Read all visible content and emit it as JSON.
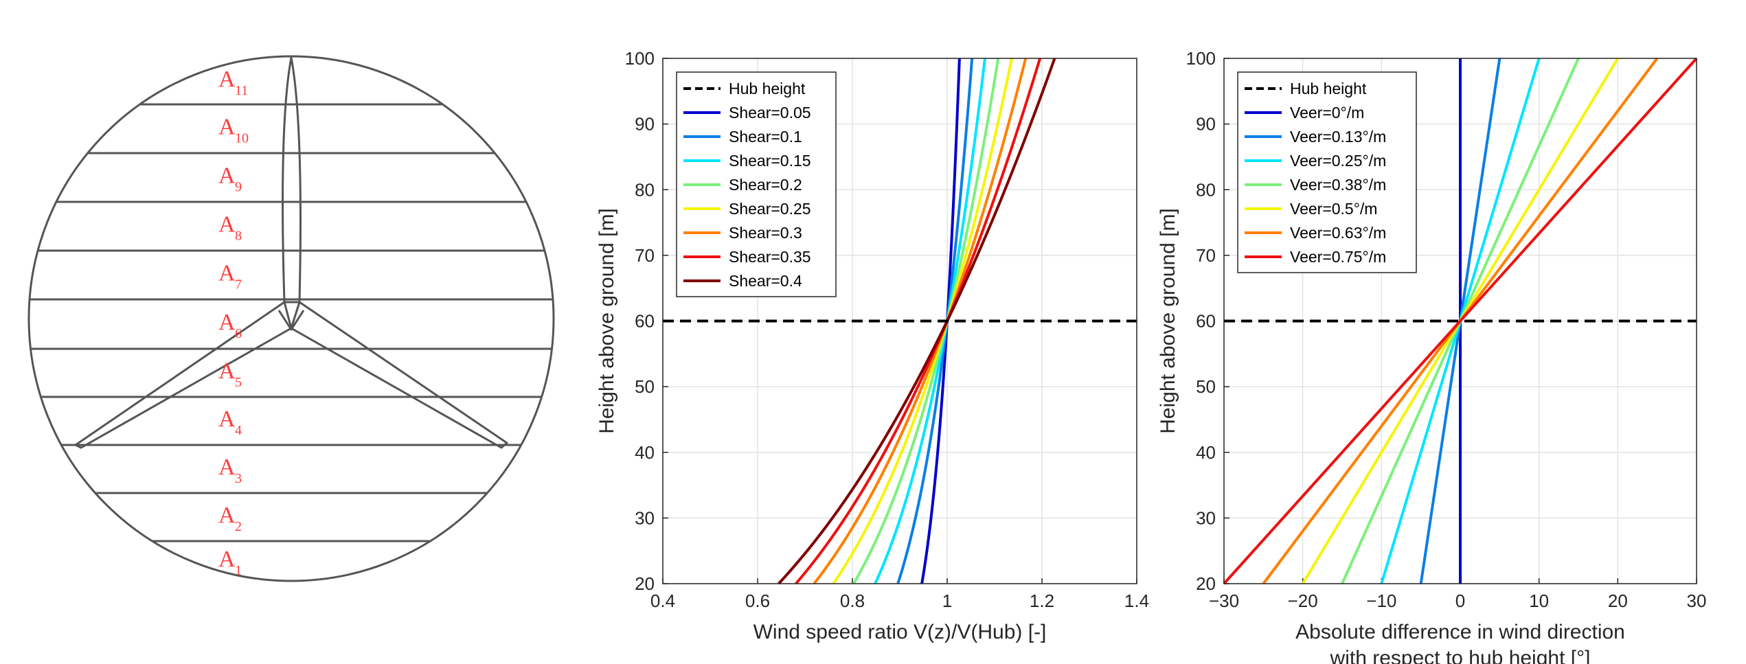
{
  "rotor_diagram": {
    "labels": [
      "A",
      "A",
      "A",
      "A",
      "A",
      "A",
      "A",
      "A",
      "A",
      "A",
      "A"
    ],
    "subscripts": [
      "11",
      "10",
      "9",
      "8",
      "7",
      "6",
      "5",
      "4",
      "3",
      "2",
      "1"
    ],
    "label_color": "#ff3b3b"
  },
  "chart_data": [
    {
      "type": "line",
      "xlabel": "Wind speed ratio V(z)/V(Hub) [-]",
      "ylabel": "Height above ground [m]",
      "xlim": [
        0.4,
        1.4
      ],
      "ylim": [
        20,
        100
      ],
      "xticks": [
        "0.4",
        "0.6",
        "0.8",
        "1",
        "1.2",
        "1.4"
      ],
      "yticks": [
        "20",
        "30",
        "40",
        "50",
        "60",
        "70",
        "80",
        "90",
        "100"
      ],
      "grid": true,
      "legend_position": "top-left",
      "hub_height": 60,
      "hub_label": "Hub height",
      "series": [
        {
          "name": "Shear=0.05",
          "exponent": 0.05,
          "color": "#0000cc"
        },
        {
          "name": "Shear=0.1",
          "exponent": 0.1,
          "color": "#0a7fe6"
        },
        {
          "name": "Shear=0.15",
          "exponent": 0.15,
          "color": "#00e5ff"
        },
        {
          "name": "Shear=0.2",
          "exponent": 0.2,
          "color": "#7cf07c"
        },
        {
          "name": "Shear=0.25",
          "exponent": 0.25,
          "color": "#f5f50a"
        },
        {
          "name": "Shear=0.3",
          "exponent": 0.3,
          "color": "#ff8000"
        },
        {
          "name": "Shear=0.35",
          "exponent": 0.35,
          "color": "#ee1111"
        },
        {
          "name": "Shear=0.4",
          "exponent": 0.4,
          "color": "#800000"
        }
      ]
    },
    {
      "type": "line",
      "xlabel": "Absolute difference in wind direction",
      "xlabel2": "with respect to hub height  [°]",
      "ylabel": "Height above ground [m]",
      "xlim": [
        -30,
        30
      ],
      "ylim": [
        20,
        100
      ],
      "xticks": [
        "−30",
        "−20",
        "−10",
        "0",
        "10",
        "20",
        "30"
      ],
      "yticks": [
        "20",
        "30",
        "40",
        "50",
        "60",
        "70",
        "80",
        "90",
        "100"
      ],
      "grid": true,
      "legend_position": "top-left",
      "hub_height": 60,
      "hub_label": "Hub height",
      "series": [
        {
          "name": "Veer=0°/m",
          "rate": 0.0,
          "color": "#0000cc"
        },
        {
          "name": "Veer=0.13°/m",
          "rate": 0.125,
          "color": "#0a7fe6"
        },
        {
          "name": "Veer=0.25°/m",
          "rate": 0.25,
          "color": "#00e5ff"
        },
        {
          "name": "Veer=0.38°/m",
          "rate": 0.375,
          "color": "#7cf07c"
        },
        {
          "name": "Veer=0.5°/m",
          "rate": 0.5,
          "color": "#f5f50a"
        },
        {
          "name": "Veer=0.63°/m",
          "rate": 0.625,
          "color": "#ff8000"
        },
        {
          "name": "Veer=0.75°/m",
          "rate": 0.75,
          "color": "#ee1111"
        }
      ]
    }
  ]
}
